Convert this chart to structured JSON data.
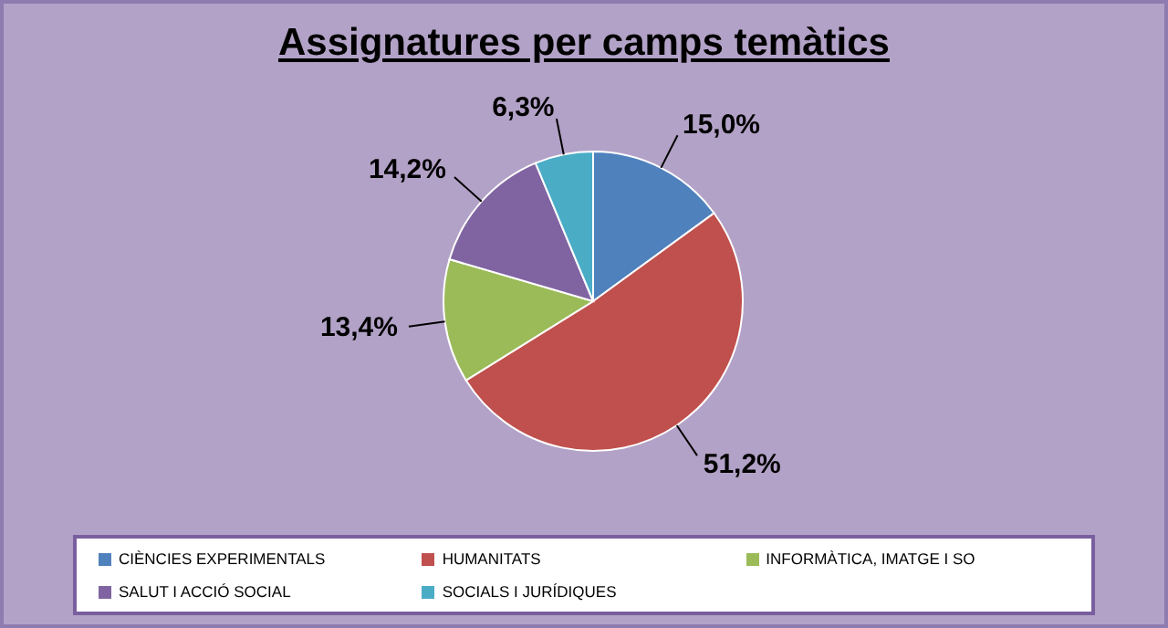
{
  "chart_data": {
    "type": "pie",
    "title": "Assignatures per camps temàtics",
    "categories": [
      "CIÈNCIES EXPERIMENTALS",
      "HUMANITATS",
      "INFORMÀTICA, IMATGE I SO",
      "SALUT I ACCIÓ SOCIAL",
      "SOCIALS I JURÍDIQUES"
    ],
    "values": [
      15.0,
      51.2,
      13.4,
      14.2,
      6.3
    ],
    "value_labels": [
      "15,0%",
      "51,2%",
      "13,4%",
      "14,2%",
      "6,3%"
    ],
    "colors": [
      "#4f81bd",
      "#c0504d",
      "#9bbb59",
      "#8064a2",
      "#4bacc6"
    ],
    "legend": "bottom"
  }
}
